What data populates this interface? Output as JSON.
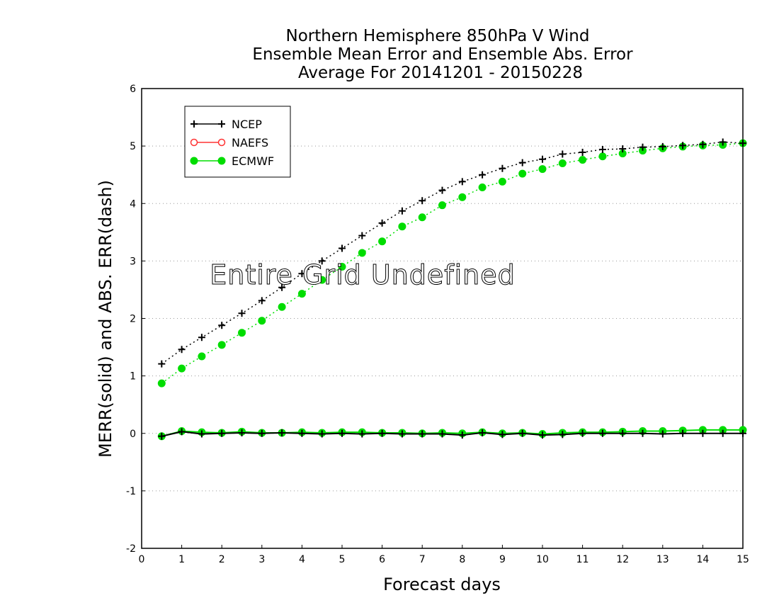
{
  "chart_data": {
    "type": "line",
    "title_lines": [
      "Northern Hemisphere 850hPa V Wind",
      "Ensemble Mean Error and Ensemble Abs. Error",
      "Average For 20141201 - 20150228"
    ],
    "xlabel": "Forecast days",
    "ylabel": "MERR(solid) and ABS. ERR(dash)",
    "xlim": [
      0,
      15
    ],
    "ylim": [
      -2,
      6
    ],
    "x_ticks": [
      "0",
      "1",
      "2",
      "3",
      "4",
      "5",
      "6",
      "7",
      "8",
      "9",
      "10",
      "11",
      "12",
      "13",
      "14",
      "15"
    ],
    "y_ticks": [
      "-2",
      "-1",
      "0",
      "1",
      "2",
      "3",
      "4",
      "5",
      "6"
    ],
    "grid": "horizontal dotted",
    "legend_position": "top-left",
    "annotation": "Entire Grid Undefined",
    "x": [
      0.5,
      1,
      1.5,
      2,
      2.5,
      3,
      3.5,
      4,
      4.5,
      5,
      5.5,
      6,
      6.5,
      7,
      7.5,
      8,
      8.5,
      9,
      9.5,
      10,
      10.5,
      11,
      11.5,
      12,
      12.5,
      13,
      13.5,
      14,
      14.5,
      15
    ],
    "series": [
      {
        "name": "NCEP",
        "color": "#000000",
        "marker": "plus",
        "abs_err": [
          1.21,
          1.46,
          1.67,
          1.88,
          2.09,
          2.31,
          2.54,
          2.78,
          3.0,
          3.22,
          3.44,
          3.66,
          3.87,
          4.05,
          4.23,
          4.38,
          4.5,
          4.61,
          4.71,
          4.77,
          4.86,
          4.89,
          4.94,
          4.95,
          4.98,
          4.99,
          5.01,
          5.03,
          5.07,
          5.05
        ],
        "mean_err": [
          -0.05,
          0.03,
          -0.01,
          0.0,
          0.01,
          0.0,
          0.01,
          0.0,
          -0.01,
          0.0,
          -0.01,
          0.0,
          -0.01,
          -0.01,
          -0.01,
          -0.03,
          0.01,
          -0.02,
          0.0,
          -0.03,
          -0.02,
          0.0,
          0.0,
          0.0,
          0.0,
          -0.01,
          0.0,
          0.0,
          0.0,
          0.0
        ]
      },
      {
        "name": "NAEFS",
        "color": "#ff3333",
        "marker": "open-circle",
        "abs_err": [],
        "mean_err": []
      },
      {
        "name": "ECMWF",
        "color": "#00dd00",
        "marker": "filled-circle",
        "abs_err": [
          0.87,
          1.13,
          1.34,
          1.54,
          1.75,
          1.96,
          2.2,
          2.43,
          2.67,
          2.9,
          3.14,
          3.34,
          3.6,
          3.76,
          3.97,
          4.11,
          4.28,
          4.38,
          4.52,
          4.6,
          4.7,
          4.76,
          4.82,
          4.87,
          4.92,
          4.96,
          4.99,
          5.01,
          5.02,
          5.05
        ],
        "mean_err": [
          -0.05,
          0.04,
          0.02,
          0.01,
          0.03,
          0.01,
          0.01,
          0.02,
          0.01,
          0.02,
          0.02,
          0.01,
          0.01,
          0.0,
          0.01,
          0.0,
          0.02,
          0.0,
          0.01,
          -0.01,
          0.01,
          0.02,
          0.02,
          0.03,
          0.04,
          0.04,
          0.05,
          0.06,
          0.06,
          0.06
        ]
      }
    ]
  }
}
